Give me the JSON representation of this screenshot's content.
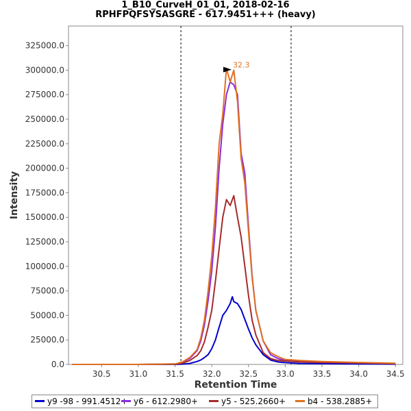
{
  "title_line1": "1_B10_CurveH_01_01, 2018-02-16",
  "title_line2": "RPHFPQFSYSASGRE - 617.9451+++ (heavy)",
  "chart_data": {
    "type": "line",
    "xlabel": "Retention Time",
    "ylabel": "Intensity",
    "xlim": [
      30.05,
      34.6
    ],
    "ylim": [
      0,
      345000
    ],
    "x_ticks": [
      "30.5",
      "31.0",
      "31.5",
      "32.0",
      "32.5",
      "33.0",
      "33.5",
      "34.0",
      "34.5"
    ],
    "y_ticks": [
      "0.0",
      "25000.0",
      "50000.0",
      "75000.0",
      "100000.0",
      "125000.0",
      "150000.0",
      "175000.0",
      "200000.0",
      "225000.0",
      "250000.0",
      "275000.0",
      "300000.0",
      "325000.0"
    ],
    "x_tick_values": [
      30.5,
      31.0,
      31.5,
      32.0,
      32.5,
      33.0,
      33.5,
      34.0,
      34.5
    ],
    "y_tick_values": [
      0,
      25000,
      50000,
      75000,
      100000,
      125000,
      150000,
      175000,
      200000,
      225000,
      250000,
      275000,
      300000,
      325000
    ],
    "vlines": [
      31.58,
      33.08
    ],
    "peak_annotation": {
      "label": "32.3",
      "x": 32.25,
      "y": 302000
    },
    "grid": false,
    "legend_position": "bottom",
    "series": [
      {
        "name": "y9 -98 - 991.4512+",
        "color": "#0000cc",
        "x": [
          30.1,
          31.0,
          31.5,
          31.6,
          31.7,
          31.8,
          31.85,
          31.9,
          31.95,
          32.0,
          32.05,
          32.1,
          32.15,
          32.2,
          32.25,
          32.28,
          32.3,
          32.35,
          32.4,
          32.45,
          32.5,
          32.55,
          32.6,
          32.7,
          32.8,
          32.9,
          33.0,
          33.2,
          33.5,
          34.0,
          34.5
        ],
        "y": [
          0,
          0,
          0,
          300,
          1000,
          3000,
          4500,
          7000,
          10000,
          16000,
          25000,
          38000,
          50000,
          55000,
          62000,
          69000,
          64000,
          62000,
          56000,
          46000,
          36000,
          27000,
          20000,
          10000,
          4500,
          2500,
          1800,
          1000,
          800,
          500,
          300
        ]
      },
      {
        "name": "y6 - 612.2980+",
        "color": "#8a2be2",
        "x": [
          30.1,
          31.0,
          31.5,
          31.6,
          31.7,
          31.8,
          31.85,
          31.9,
          31.95,
          32.0,
          32.05,
          32.1,
          32.15,
          32.2,
          32.25,
          32.3,
          32.35,
          32.4,
          32.45,
          32.5,
          32.55,
          32.6,
          32.7,
          32.8,
          32.9,
          33.0,
          33.2,
          33.5,
          34.0,
          34.5
        ],
        "y": [
          0,
          0,
          500,
          2000,
          6000,
          14000,
          24000,
          40000,
          65000,
          95000,
          140000,
          200000,
          245000,
          275000,
          288000,
          285000,
          275000,
          215000,
          195000,
          140000,
          90000,
          55000,
          24000,
          10000,
          6000,
          4000,
          3000,
          2000,
          1500,
          1000
        ]
      },
      {
        "name": "y5 - 525.2660+",
        "color": "#a52a2a",
        "x": [
          30.1,
          31.0,
          31.5,
          31.6,
          31.7,
          31.8,
          31.85,
          31.9,
          31.95,
          32.0,
          32.05,
          32.1,
          32.15,
          32.2,
          32.25,
          32.3,
          32.35,
          32.4,
          32.45,
          32.5,
          32.55,
          32.6,
          32.7,
          32.8,
          32.9,
          33.0,
          33.2,
          33.5,
          34.0,
          34.5
        ],
        "y": [
          0,
          0,
          300,
          1200,
          4000,
          9000,
          14000,
          23000,
          38000,
          55000,
          85000,
          118000,
          150000,
          168000,
          162000,
          172000,
          150000,
          130000,
          100000,
          70000,
          45000,
          30000,
          12000,
          6000,
          4000,
          3500,
          2500,
          2000,
          1500,
          800
        ]
      },
      {
        "name": "b4 - 538.2885+",
        "color": "#e07020",
        "x": [
          30.1,
          31.0,
          31.5,
          31.6,
          31.7,
          31.8,
          31.85,
          31.9,
          31.95,
          32.0,
          32.05,
          32.1,
          32.15,
          32.2,
          32.25,
          32.3,
          32.35,
          32.4,
          32.45,
          32.5,
          32.55,
          32.6,
          32.7,
          32.8,
          32.9,
          33.0,
          33.2,
          33.5,
          34.0,
          34.5
        ],
        "y": [
          0,
          0,
          500,
          2500,
          7000,
          15000,
          27000,
          45000,
          75000,
          110000,
          160000,
          225000,
          255000,
          302000,
          288000,
          300000,
          268000,
          210000,
          185000,
          135000,
          88000,
          55000,
          24000,
          12000,
          8000,
          5000,
          4000,
          3000,
          2000,
          1200
        ]
      }
    ]
  }
}
